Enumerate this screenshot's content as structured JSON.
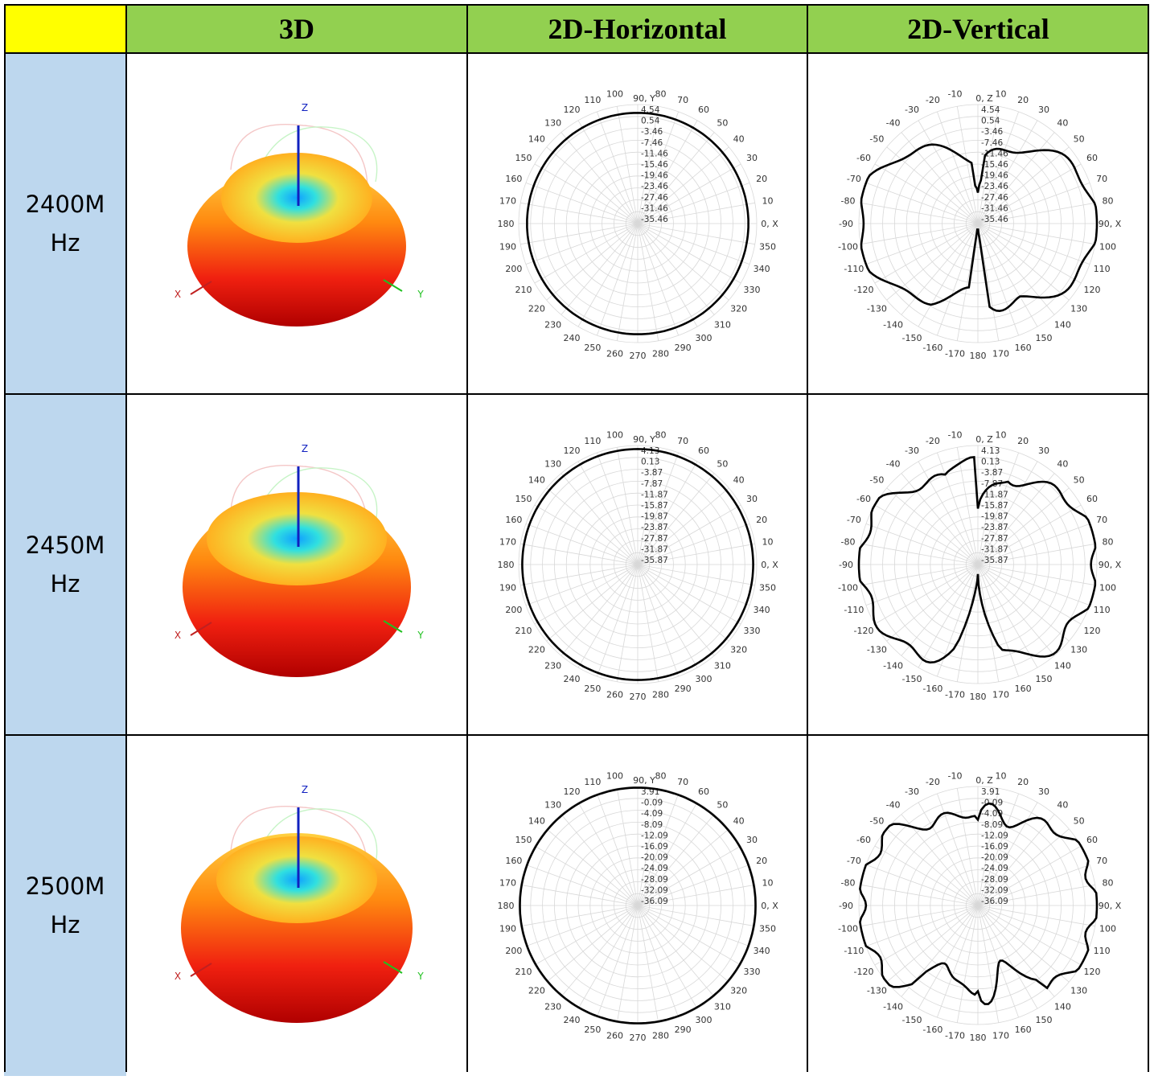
{
  "colors": {
    "corner": "#ffff00",
    "header": "#92d050",
    "rowlabel": "#bdd7ee",
    "grid": "#000000"
  },
  "header": {
    "col1": "3D",
    "col2": "2D-Horizontal",
    "col3": "2D-Vertical"
  },
  "rows": [
    {
      "freq_line1": "2400M",
      "freq_line2": "Hz",
      "axes3d": {
        "z": "Z",
        "x": "X",
        "y": "Y"
      },
      "horizontal": {
        "top_label": "90, Y",
        "scale": [
          "4.54",
          "0.54",
          "-3.46",
          "-7.46",
          "-11.46",
          "-15.46",
          "-19.46",
          "-23.46",
          "-27.46",
          "-31.46",
          "-35.46"
        ],
        "pattern": {
          "base": 0.93,
          "squash": 1.0
        }
      },
      "vertical": {
        "top_label": "0, Z",
        "scale": [
          "4.54",
          "0.54",
          "-3.46",
          "-7.46",
          "-11.46",
          "-15.46",
          "-19.46",
          "-23.46",
          "-27.46",
          "-31.46",
          "-35.46"
        ],
        "pattern": {
          "shape": "v1"
        }
      }
    },
    {
      "freq_line1": "2450M",
      "freq_line2": "Hz",
      "axes3d": {
        "z": "Z",
        "x": "X",
        "y": "Y"
      },
      "horizontal": {
        "top_label": "90, Y",
        "scale": [
          "4.13",
          "0.13",
          "-3.87",
          "-7.87",
          "-11.87",
          "-15.87",
          "-19.87",
          "-23.87",
          "-27.87",
          "-31.87",
          "-35.87"
        ],
        "pattern": {
          "base": 0.97,
          "squash": 1.0
        }
      },
      "vertical": {
        "top_label": "0, Z",
        "scale": [
          "4.13",
          "0.13",
          "-3.87",
          "-7.87",
          "-11.87",
          "-15.87",
          "-19.87",
          "-23.87",
          "-27.87",
          "-31.87",
          "-35.87"
        ],
        "pattern": {
          "shape": "v2"
        }
      }
    },
    {
      "freq_line1": "2500M",
      "freq_line2": "Hz",
      "axes3d": {
        "z": "Z",
        "x": "X",
        "y": "Y"
      },
      "horizontal": {
        "top_label": "90, Y",
        "scale": [
          "3.91",
          "-0.09",
          "-4.09",
          "-8.09",
          "-12.09",
          "-16.09",
          "-20.09",
          "-24.09",
          "-28.09",
          "-32.09",
          "-36.09"
        ],
        "pattern": {
          "base": 0.99,
          "squash": 1.0
        }
      },
      "vertical": {
        "top_label": "0, Z",
        "scale": [
          "3.91",
          "-0.09",
          "-4.09",
          "-8.09",
          "-12.09",
          "-16.09",
          "-20.09",
          "-24.09",
          "-28.09",
          "-32.09",
          "-36.09"
        ],
        "pattern": {
          "shape": "v3"
        }
      }
    }
  ],
  "horizontal_angle_labels": [
    "80",
    "70",
    "60",
    "50",
    "40",
    "30",
    "20",
    "10",
    "0, X",
    "350",
    "340",
    "330",
    "320",
    "310",
    "300",
    "290",
    "280",
    "270",
    "260",
    "250",
    "240",
    "230",
    "220",
    "210",
    "200",
    "190",
    "180",
    "170",
    "160",
    "150",
    "140",
    "130",
    "120",
    "110",
    "100"
  ],
  "vertical_angle_labels": [
    "10",
    "20",
    "30",
    "40",
    "50",
    "60",
    "70",
    "80",
    "90, X",
    "100",
    "110",
    "120",
    "130",
    "140",
    "150",
    "160",
    "170",
    "180",
    "-170",
    "-160",
    "-150",
    "-140",
    "-130",
    "-120",
    "-110",
    "-100",
    "-90",
    "-80",
    "-70",
    "-60",
    "-50",
    "-40",
    "-30",
    "-20",
    "-10"
  ]
}
